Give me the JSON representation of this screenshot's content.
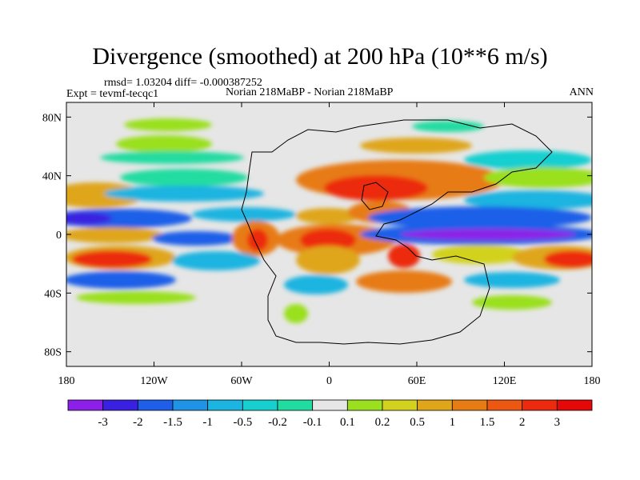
{
  "chart_data": {
    "type": "heatmap",
    "title": "Divergence (smoothed) at 200 hPa (10**6 m/s)",
    "stats": "rmsd= 1.03204 diff= -0.000387252",
    "left_label": "Expt = tevmf-tecqc1",
    "center_label": "Norian 218MaBP - Norian 218MaBP",
    "right_label": "ANN",
    "x_ticks": [
      "180",
      "120W",
      "60W",
      "0",
      "60E",
      "120E",
      "180"
    ],
    "x_tick_values": [
      -180,
      -120,
      -60,
      0,
      60,
      120,
      180
    ],
    "y_ticks": [
      "80N",
      "40N",
      "0",
      "40S",
      "80S"
    ],
    "y_tick_values": [
      80,
      40,
      0,
      -40,
      -80
    ],
    "xlim": [
      -180,
      180
    ],
    "ylim": [
      -90,
      90
    ],
    "colorbar": {
      "labels": [
        "-3",
        "-2",
        "-1.5",
        "-1",
        "-0.5",
        "-0.2",
        "-0.1",
        "0.1",
        "0.2",
        "0.5",
        "1",
        "1.5",
        "2",
        "3"
      ],
      "colors": [
        "#8d20e8",
        "#3a20e0",
        "#1e5ee8",
        "#1f94e6",
        "#1cb4e0",
        "#18cfd0",
        "#20dca0",
        "#e6e6e6",
        "#9ae01e",
        "#d2d21e",
        "#dfa61a",
        "#e77c14",
        "#ec5812",
        "#ec2a0e",
        "#e40808"
      ]
    }
  }
}
